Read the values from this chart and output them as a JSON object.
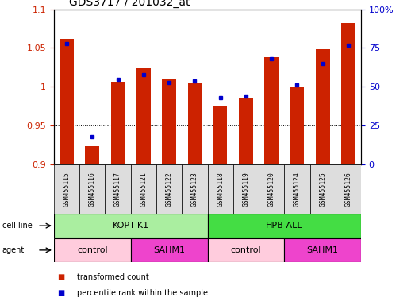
{
  "title": "GDS3717 / 201032_at",
  "samples": [
    "GSM455115",
    "GSM455116",
    "GSM455117",
    "GSM455121",
    "GSM455122",
    "GSM455123",
    "GSM455118",
    "GSM455119",
    "GSM455120",
    "GSM455124",
    "GSM455125",
    "GSM455126"
  ],
  "red_values": [
    1.062,
    0.924,
    1.007,
    1.025,
    1.01,
    1.005,
    0.975,
    0.985,
    1.038,
    1.0,
    1.048,
    1.082
  ],
  "blue_values": [
    78,
    18,
    55,
    58,
    53,
    54,
    43,
    44,
    68,
    51,
    65,
    77
  ],
  "ylim_left": [
    0.9,
    1.1
  ],
  "ylim_right": [
    0,
    100
  ],
  "yticks_left": [
    0.9,
    0.95,
    1.0,
    1.05,
    1.1
  ],
  "ytick_labels_left": [
    "0.9",
    "0.95",
    "1",
    "1.05",
    "1.1"
  ],
  "yticks_right": [
    0,
    25,
    50,
    75,
    100
  ],
  "ytick_labels_right": [
    "0",
    "25",
    "50",
    "75",
    "100%"
  ],
  "cell_line_groups": [
    {
      "label": "KOPT-K1",
      "start": 0,
      "end": 6,
      "color": "#AAEEA0"
    },
    {
      "label": "HPB-ALL",
      "start": 6,
      "end": 12,
      "color": "#44DD44"
    }
  ],
  "agent_groups": [
    {
      "label": "control",
      "start": 0,
      "end": 3,
      "color": "#FFCCDD"
    },
    {
      "label": "SAHM1",
      "start": 3,
      "end": 6,
      "color": "#EE44CC"
    },
    {
      "label": "control",
      "start": 6,
      "end": 9,
      "color": "#FFCCDD"
    },
    {
      "label": "SAHM1",
      "start": 9,
      "end": 12,
      "color": "#EE44CC"
    }
  ],
  "bar_color": "#CC2200",
  "marker_color": "#0000CC",
  "baseline": 0.9,
  "bar_width": 0.55,
  "sample_bg": "#DDDDDD",
  "label_color_left": "#CC2200",
  "label_color_right": "#0000CC"
}
